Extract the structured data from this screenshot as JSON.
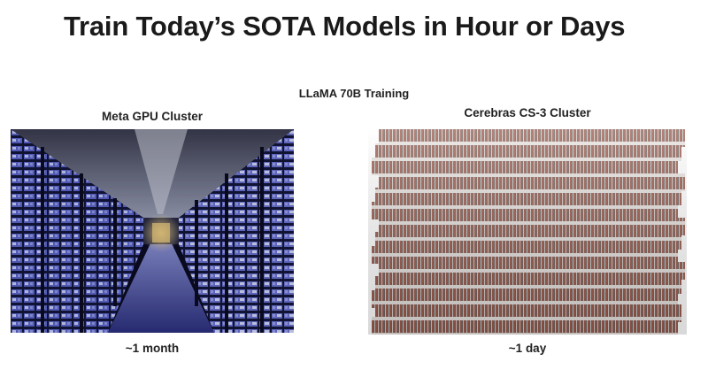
{
  "slide": {
    "title": "Train Today’s SOTA Models in Hour or Days",
    "subtitle": "LLaMA 70B Training"
  },
  "left": {
    "label": "Meta GPU Cluster",
    "time": "~1 month"
  },
  "right": {
    "label": "Cerebras CS-3 Cluster",
    "time": "~1 day"
  },
  "colors": {
    "datacenter_blue": "#5a63c8",
    "cs3_rust": "#8a4a3c",
    "cs3_gray": "#c9c2be"
  }
}
